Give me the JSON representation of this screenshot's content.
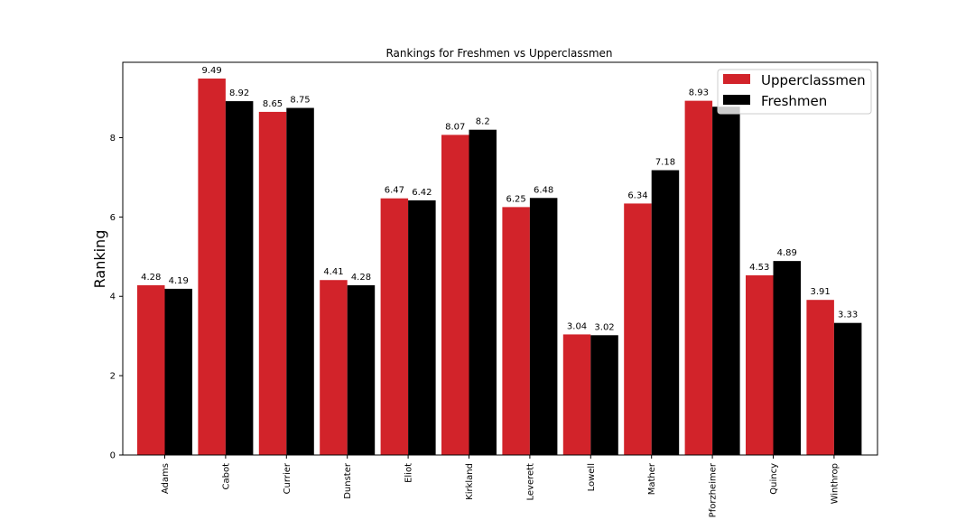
{
  "chart_data": {
    "type": "bar",
    "title": "Rankings for Freshmen vs Upperclassmen",
    "xlabel": "",
    "ylabel": "Ranking",
    "ylim": [
      0,
      9.9
    ],
    "yticks": [
      0,
      2,
      4,
      6,
      8
    ],
    "grid": false,
    "legend_position": "top-right",
    "categories": [
      "Adams",
      "Cabot",
      "Currier",
      "Dunster",
      "Eliot",
      "Kirkland",
      "Leverett",
      "Lowell",
      "Mather",
      "Pforzheimer",
      "Quincy",
      "Winthrop"
    ],
    "series": [
      {
        "name": "Upperclassmen",
        "color": "#d2232a",
        "values": [
          4.28,
          9.49,
          8.65,
          4.41,
          6.47,
          8.07,
          6.25,
          3.04,
          6.34,
          8.93,
          4.53,
          3.91
        ],
        "labels": [
          "4.28",
          "9.49",
          "8.65",
          "4.41",
          "6.47",
          "8.07",
          "6.25",
          "3.04",
          "6.34",
          "8.93",
          "4.53",
          "3.91"
        ]
      },
      {
        "name": "Freshmen",
        "color": "#000000",
        "values": [
          4.19,
          8.92,
          8.75,
          4.28,
          6.42,
          8.2,
          6.48,
          3.02,
          7.18,
          8.78,
          4.89,
          3.33
        ],
        "labels": [
          "4.19",
          "8.92",
          "8.75",
          "4.28",
          "6.42",
          "8.2",
          "6.48",
          "3.02",
          "7.18",
          "",
          "4.89",
          "3.33"
        ]
      }
    ]
  }
}
